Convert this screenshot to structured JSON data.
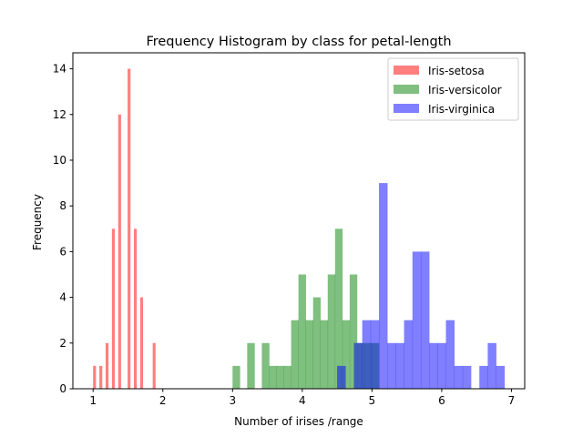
{
  "chart_data": {
    "type": "bar",
    "title": "Frequency Histogram by class for  petal-length",
    "xlabel": "Number of irises /range",
    "ylabel": "Frequency",
    "xlim": [
      0.71,
      7.19
    ],
    "ylim": [
      0,
      14.7
    ],
    "xticks": [
      1,
      2,
      3,
      4,
      5,
      6,
      7
    ],
    "yticks": [
      0,
      2,
      4,
      6,
      8,
      10,
      12,
      14
    ],
    "grid": false,
    "legend_position": "top-right",
    "series": [
      {
        "name": "Iris-setosa",
        "color": "#ff0000",
        "opacity": 0.5,
        "bin_edges": [
          1.0,
          1.045,
          1.09,
          1.135,
          1.18,
          1.225,
          1.27,
          1.315,
          1.36,
          1.405,
          1.45,
          1.495,
          1.54,
          1.585,
          1.63,
          1.675,
          1.72,
          1.765,
          1.81,
          1.855,
          1.9
        ],
        "counts": [
          1,
          0,
          1,
          0,
          2,
          0,
          7,
          0,
          12,
          0,
          0,
          14,
          0,
          7,
          0,
          4,
          0,
          0,
          0,
          2
        ]
      },
      {
        "name": "Iris-versicolor",
        "color": "#008000",
        "opacity": 0.5,
        "bin_edges": [
          3.0,
          3.105,
          3.21,
          3.315,
          3.42,
          3.525,
          3.63,
          3.735,
          3.84,
          3.945,
          4.05,
          4.155,
          4.26,
          4.365,
          4.47,
          4.575,
          4.68,
          4.785,
          4.89,
          4.995,
          5.1
        ],
        "counts": [
          1,
          0,
          2,
          0,
          2,
          1,
          1,
          1,
          3,
          5,
          3,
          4,
          3,
          5,
          7,
          3,
          5,
          2,
          2,
          2
        ]
      },
      {
        "name": "Iris-virginica",
        "color": "#0000ff",
        "opacity": 0.5,
        "bin_edges": [
          4.5,
          4.62,
          4.74,
          4.86,
          4.98,
          5.1,
          5.22,
          5.34,
          5.46,
          5.58,
          5.7,
          5.82,
          5.94,
          6.06,
          6.18,
          6.3,
          6.42,
          6.54,
          6.66,
          6.78,
          6.9
        ],
        "counts": [
          1,
          0,
          2,
          3,
          3,
          9,
          2,
          2,
          3,
          6,
          6,
          2,
          2,
          3,
          1,
          1,
          0,
          1,
          2,
          1
        ]
      }
    ]
  }
}
